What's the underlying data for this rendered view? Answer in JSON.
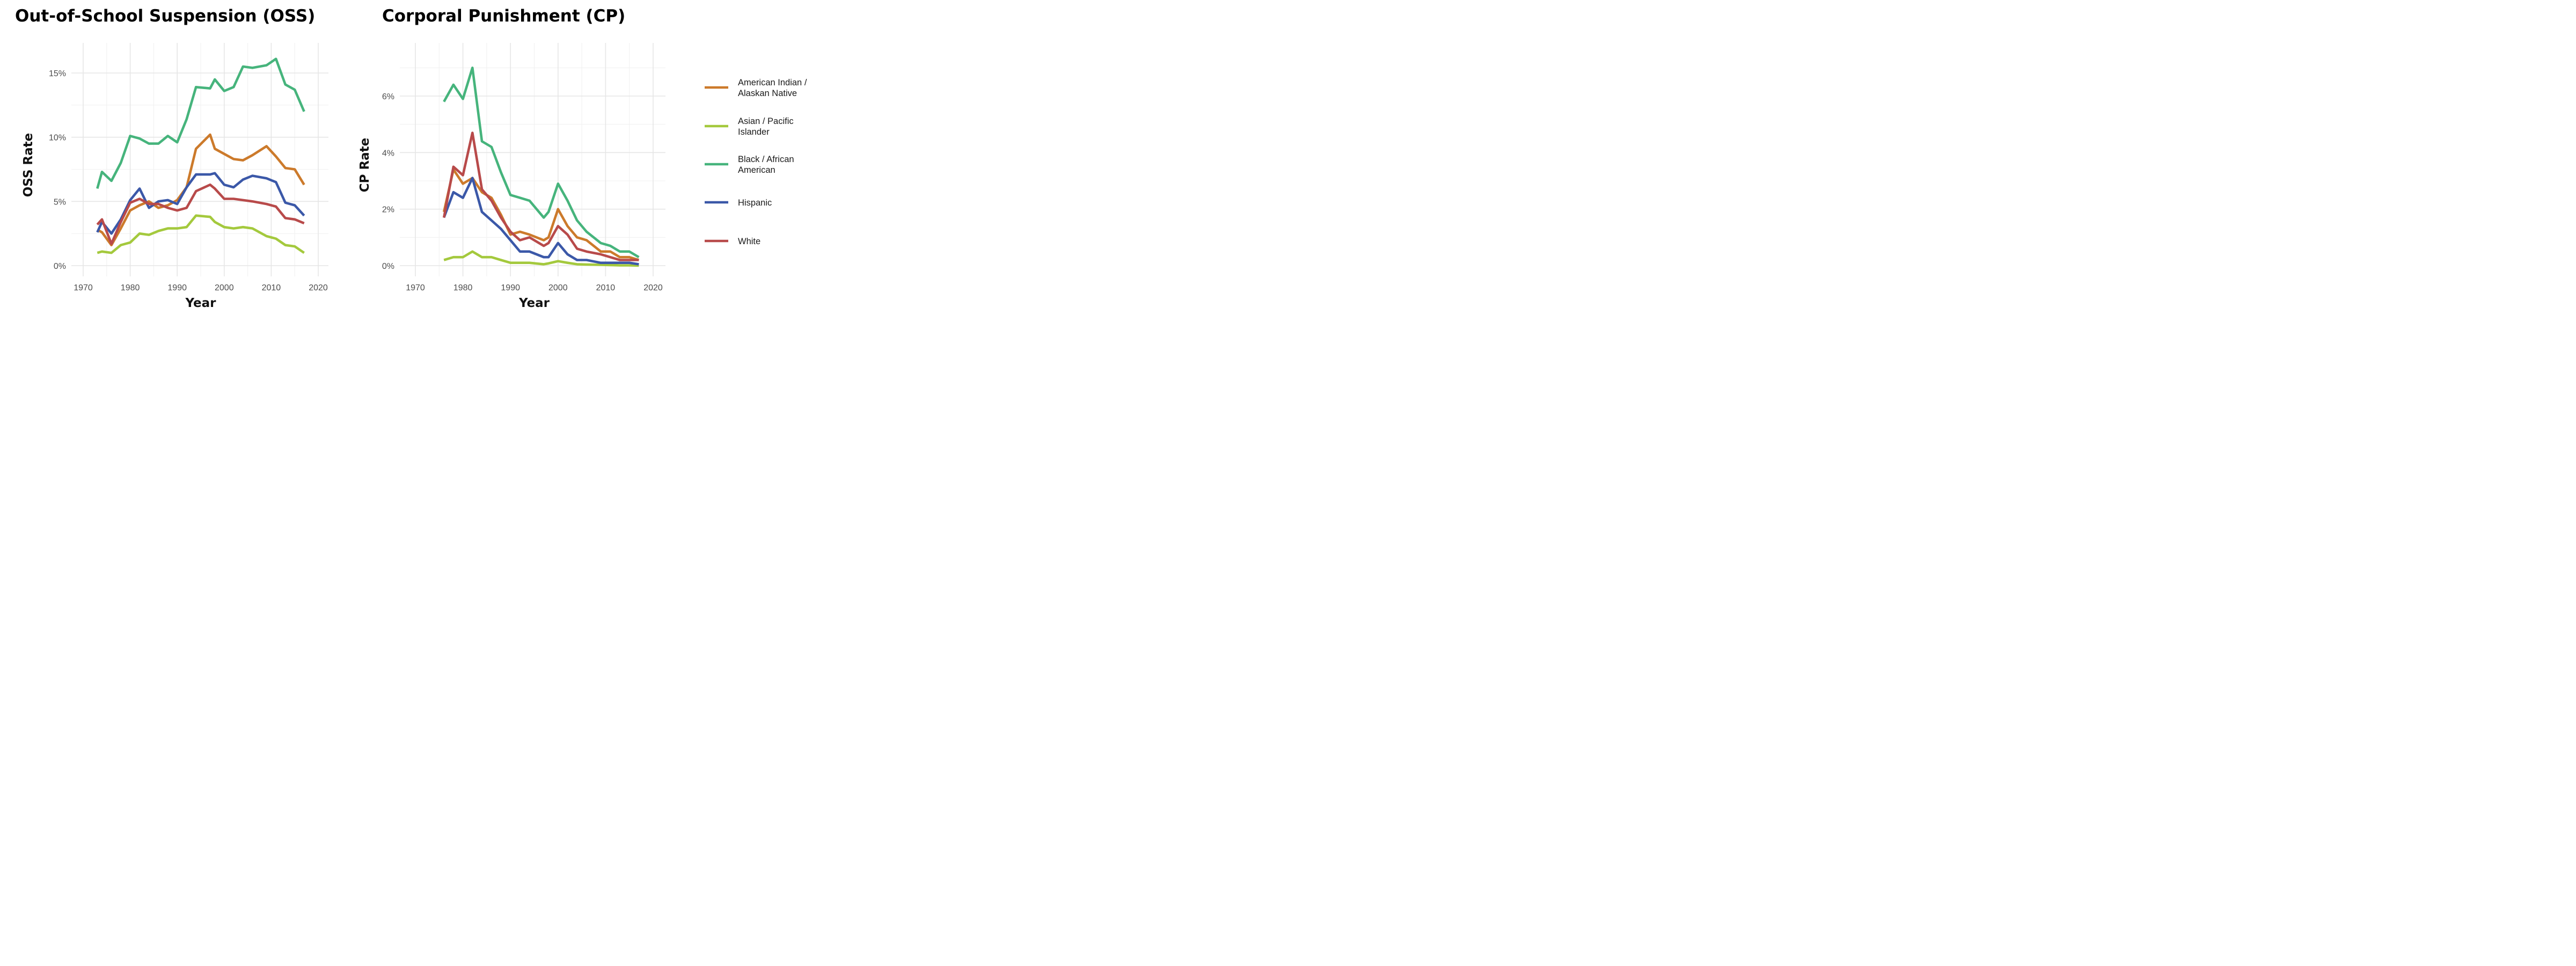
{
  "chart_data": [
    {
      "type": "line",
      "title": "Out-of-School Suspension (OSS)",
      "xlabel": "Year",
      "ylabel": "OSS Rate",
      "xlim": [
        1970,
        2020
      ],
      "ylim": [
        0,
        0.15
      ],
      "x_ticks": [
        1970,
        1980,
        1990,
        2000,
        2010,
        2020
      ],
      "y_ticks": [
        0,
        0.05,
        0.1,
        0.15
      ],
      "y_tick_labels": [
        "0%",
        "5%",
        "10%",
        "15%"
      ],
      "grid": true,
      "series": [
        {
          "name": "American Indian / Alaskan Native",
          "color": "#cc7a2b",
          "x": [
            1973,
            1974,
            1976,
            1978,
            1980,
            1982,
            1984,
            1986,
            1988,
            1990,
            1992,
            1994,
            1997,
            1998,
            2000,
            2002,
            2004,
            2006,
            2009,
            2011,
            2013,
            2015,
            2017
          ],
          "y": [
            0.028,
            0.026,
            0.016,
            0.029,
            0.043,
            0.047,
            0.05,
            0.045,
            0.047,
            0.051,
            0.061,
            0.091,
            0.102,
            0.091,
            0.087,
            0.083,
            0.082,
            0.086,
            0.093,
            0.085,
            0.076,
            0.075,
            0.063
          ]
        },
        {
          "name": "Asian / Pacific Islander",
          "color": "#a4c93d",
          "x": [
            1973,
            1974,
            1976,
            1978,
            1980,
            1982,
            1984,
            1986,
            1988,
            1990,
            1992,
            1994,
            1997,
            1998,
            2000,
            2002,
            2004,
            2006,
            2009,
            2011,
            2013,
            2015,
            2017
          ],
          "y": [
            0.01,
            0.011,
            0.01,
            0.016,
            0.018,
            0.025,
            0.024,
            0.027,
            0.029,
            0.029,
            0.03,
            0.039,
            0.038,
            0.034,
            0.03,
            0.029,
            0.03,
            0.029,
            0.023,
            0.021,
            0.016,
            0.015,
            0.01
          ]
        },
        {
          "name": "Black / African American",
          "color": "#46b47c",
          "x": [
            1973,
            1974,
            1976,
            1978,
            1980,
            1982,
            1984,
            1986,
            1988,
            1990,
            1992,
            1994,
            1997,
            1998,
            2000,
            2002,
            2004,
            2006,
            2009,
            2011,
            2013,
            2015,
            2017
          ],
          "y": [
            0.06,
            0.073,
            0.066,
            0.08,
            0.101,
            0.099,
            0.095,
            0.095,
            0.101,
            0.096,
            0.114,
            0.139,
            0.138,
            0.145,
            0.136,
            0.139,
            0.155,
            0.154,
            0.156,
            0.161,
            0.141,
            0.137,
            0.12
          ]
        },
        {
          "name": "Hispanic",
          "color": "#3b58a8",
          "x": [
            1973,
            1974,
            1976,
            1978,
            1980,
            1982,
            1984,
            1986,
            1988,
            1990,
            1992,
            1994,
            1997,
            1998,
            2000,
            2002,
            2004,
            2006,
            2009,
            2011,
            2013,
            2015,
            2017
          ],
          "y": [
            0.026,
            0.034,
            0.025,
            0.036,
            0.051,
            0.06,
            0.045,
            0.05,
            0.051,
            0.048,
            0.061,
            0.071,
            0.071,
            0.072,
            0.063,
            0.061,
            0.067,
            0.07,
            0.068,
            0.065,
            0.049,
            0.047,
            0.039
          ]
        },
        {
          "name": "White",
          "color": "#b84a4a",
          "x": [
            1973,
            1974,
            1976,
            1978,
            1980,
            1982,
            1984,
            1986,
            1988,
            1990,
            1992,
            1994,
            1997,
            1998,
            2000,
            2002,
            2004,
            2006,
            2009,
            2011,
            2013,
            2015,
            2017
          ],
          "y": [
            0.032,
            0.036,
            0.017,
            0.034,
            0.049,
            0.052,
            0.048,
            0.048,
            0.045,
            0.043,
            0.045,
            0.058,
            0.063,
            0.06,
            0.052,
            0.052,
            0.051,
            0.05,
            0.048,
            0.046,
            0.037,
            0.036,
            0.033
          ]
        }
      ]
    },
    {
      "type": "line",
      "title": "Corporal Punishment (CP)",
      "xlabel": "Year",
      "ylabel": "CP Rate",
      "xlim": [
        1970,
        2020
      ],
      "ylim": [
        0,
        0.06
      ],
      "x_ticks": [
        1970,
        1980,
        1990,
        2000,
        2010,
        2020
      ],
      "y_ticks": [
        0,
        0.02,
        0.04,
        0.06
      ],
      "y_tick_labels": [
        "0%",
        "2%",
        "4%",
        "6%"
      ],
      "grid": true,
      "series": [
        {
          "name": "American Indian / Alaskan Native",
          "color": "#cc7a2b",
          "x": [
            1976,
            1978,
            1980,
            1982,
            1984,
            1986,
            1988,
            1990,
            1992,
            1994,
            1997,
            1998,
            2000,
            2002,
            2004,
            2006,
            2009,
            2011,
            2013,
            2015,
            2017
          ],
          "y": [
            0.019,
            0.034,
            0.029,
            0.031,
            0.026,
            0.024,
            0.018,
            0.011,
            0.012,
            0.011,
            0.009,
            0.01,
            0.02,
            0.014,
            0.01,
            0.009,
            0.005,
            0.005,
            0.003,
            0.003,
            0.002
          ]
        },
        {
          "name": "Asian / Pacific Islander",
          "color": "#a4c93d",
          "x": [
            1976,
            1978,
            1980,
            1982,
            1984,
            1986,
            1988,
            1990,
            1992,
            1994,
            1997,
            1998,
            2000,
            2002,
            2004,
            2006,
            2009,
            2011,
            2013,
            2015,
            2017
          ],
          "y": [
            0.002,
            0.003,
            0.003,
            0.005,
            0.003,
            0.003,
            0.002,
            0.001,
            0.001,
            0.001,
            0.0005,
            0.0008,
            0.0016,
            0.001,
            0.0005,
            0.0004,
            0.0003,
            0.0002,
            0.0001,
            0.0001,
            0.0
          ]
        },
        {
          "name": "Black / African American",
          "color": "#46b47c",
          "x": [
            1976,
            1978,
            1980,
            1982,
            1984,
            1986,
            1988,
            1990,
            1992,
            1994,
            1997,
            1998,
            2000,
            2002,
            2004,
            2006,
            2009,
            2011,
            2013,
            2015,
            2017
          ],
          "y": [
            0.058,
            0.064,
            0.059,
            0.07,
            0.044,
            0.042,
            0.033,
            0.025,
            0.024,
            0.023,
            0.017,
            0.019,
            0.029,
            0.023,
            0.016,
            0.012,
            0.008,
            0.007,
            0.005,
            0.005,
            0.003
          ]
        },
        {
          "name": "Hispanic",
          "color": "#3b58a8",
          "x": [
            1976,
            1978,
            1980,
            1982,
            1984,
            1986,
            1988,
            1990,
            1992,
            1994,
            1997,
            1998,
            2000,
            2002,
            2004,
            2006,
            2009,
            2011,
            2013,
            2015,
            2017
          ],
          "y": [
            0.017,
            0.026,
            0.024,
            0.031,
            0.019,
            0.016,
            0.013,
            0.009,
            0.005,
            0.005,
            0.003,
            0.003,
            0.008,
            0.004,
            0.002,
            0.002,
            0.001,
            0.001,
            0.001,
            0.001,
            0.0005
          ]
        },
        {
          "name": "White",
          "color": "#b84a4a",
          "x": [
            1976,
            1978,
            1980,
            1982,
            1984,
            1986,
            1988,
            1990,
            1992,
            1994,
            1997,
            1998,
            2000,
            2002,
            2004,
            2006,
            2009,
            2011,
            2013,
            2015,
            2017
          ],
          "y": [
            0.017,
            0.035,
            0.032,
            0.047,
            0.027,
            0.023,
            0.017,
            0.012,
            0.009,
            0.01,
            0.007,
            0.008,
            0.014,
            0.011,
            0.006,
            0.005,
            0.004,
            0.003,
            0.002,
            0.002,
            0.002
          ]
        }
      ]
    }
  ],
  "legend": {
    "placement": "right",
    "items": [
      {
        "lines": [
          "American Indian /",
          "Alaskan Native"
        ],
        "color": "#cc7a2b"
      },
      {
        "lines": [
          "Asian / Pacific",
          "Islander"
        ],
        "color": "#a4c93d"
      },
      {
        "lines": [
          "Black / African",
          "American"
        ],
        "color": "#46b47c"
      },
      {
        "lines": [
          "Hispanic"
        ],
        "color": "#3b58a8"
      },
      {
        "lines": [
          "White"
        ],
        "color": "#b84a4a"
      }
    ]
  }
}
